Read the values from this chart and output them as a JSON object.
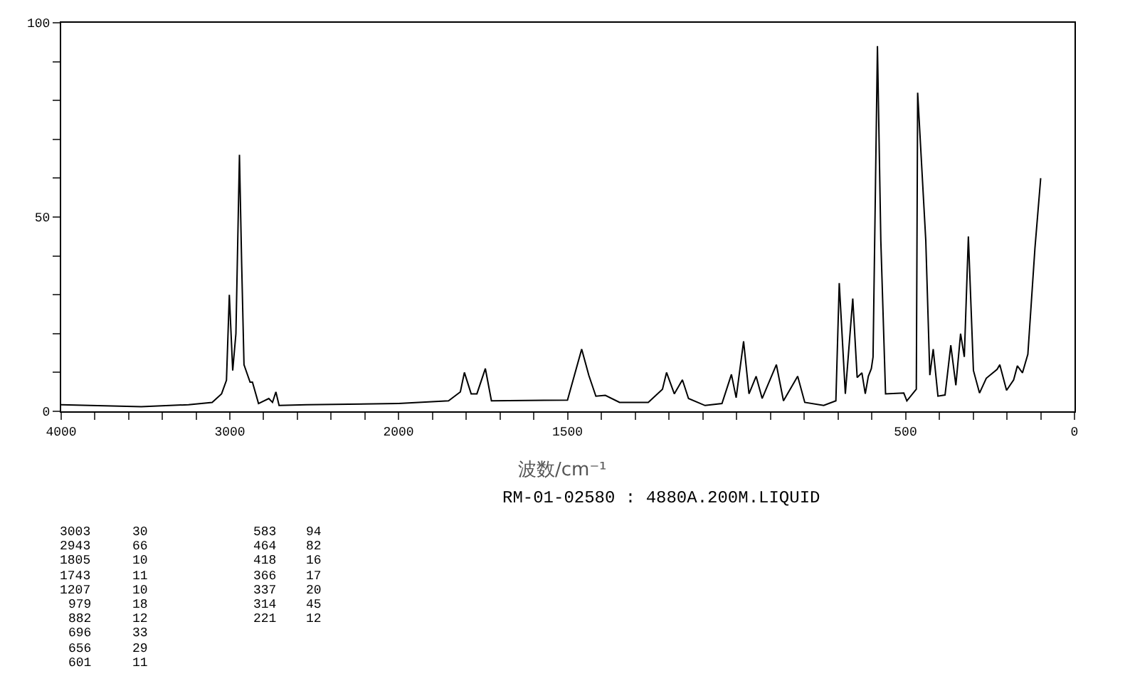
{
  "chart_data": [
    {
      "type": "line",
      "xlabel": "波数/cm⁻¹",
      "color": "#000000",
      "marker": "none",
      "line_style": "solid",
      "x": [
        4000,
        3525,
        3245,
        3105,
        3049,
        3020,
        3003,
        2983,
        2964,
        2943,
        2930,
        2916,
        2880,
        2866,
        2830,
        2769,
        2747,
        2727,
        2708,
        2544,
        2000
      ],
      "values": [
        1.7,
        1.2,
        1.7,
        2.3,
        4.5,
        8,
        30,
        10.5,
        20,
        66,
        38,
        12,
        7.5,
        7.5,
        2,
        3.3,
        2.3,
        5,
        1.5,
        1.7,
        2
      ],
      "xlim": [
        4000,
        2000
      ],
      "ylim": [
        0,
        100
      ],
      "xticks": [
        4000,
        {
          "value": 3800,
          "label": null
        },
        {
          "value": 3600,
          "label": null
        },
        {
          "value": 3400,
          "label": null
        },
        {
          "value": 3200,
          "label": null
        },
        3000,
        {
          "value": 2800,
          "label": null
        },
        {
          "value": 2600,
          "label": null
        },
        {
          "value": 2400,
          "label": null
        },
        {
          "value": 2200,
          "label": null
        },
        2000
      ],
      "yticks": [
        0,
        {
          "value": 10,
          "label": null
        },
        {
          "value": 20,
          "label": null
        },
        {
          "value": 30,
          "label": null
        },
        {
          "value": 40,
          "label": null
        },
        50,
        {
          "value": 60,
          "label": null
        },
        {
          "value": 70,
          "label": null
        },
        {
          "value": 80,
          "label": null
        },
        {
          "value": 90,
          "label": null
        },
        100
      ],
      "annotations": [
        "RM-01-02580 : 4880A.200M.LIQUID",
        "3003 30",
        "2943 66",
        "1805 10",
        "1743 11",
        "1207 10",
        "979 18",
        "882 12",
        "696 33",
        "656 29",
        "601 11",
        "583 94",
        "464 82",
        "418 16",
        "366 17",
        "337 20",
        "314 45",
        "221 12"
      ]
    },
    {
      "type": "line",
      "color": "#000000",
      "marker": "none",
      "line_style": "solid",
      "tick_labels": "x",
      "x": [
        2000,
        1852,
        1817,
        1805,
        1785,
        1768,
        1743,
        1725,
        1500,
        1458,
        1437,
        1416,
        1388,
        1346,
        1261,
        1219,
        1207,
        1184,
        1160,
        1142,
        1093,
        1043,
        1015,
        1001,
        979,
        963,
        942,
        924,
        882,
        861,
        819,
        798,
        742,
        706,
        696,
        678,
        656,
        643,
        629,
        619,
        610,
        601,
        596,
        583,
        573,
        559,
        505,
        496,
        468,
        464,
        440,
        428,
        418,
        404,
        383,
        366,
        351,
        337,
        326,
        314,
        299,
        281,
        261,
        229,
        221,
        201,
        180,
        169,
        154,
        138,
        117,
        100
      ],
      "values": [
        2,
        2.7,
        5,
        10,
        4.5,
        4.5,
        11,
        2.7,
        2.9,
        16,
        9.3,
        3.9,
        4.1,
        2.3,
        2.3,
        5.7,
        10,
        4.5,
        8.1,
        3.3,
        1.5,
        2,
        9.5,
        3.5,
        18,
        4.5,
        9,
        3.3,
        12,
        2.7,
        9,
        2.3,
        1.5,
        2.7,
        33,
        4.5,
        29,
        8.7,
        9.9,
        4.5,
        9,
        11,
        14,
        94,
        44,
        4.5,
        4.7,
        2.7,
        5.7,
        82,
        44,
        9.3,
        16,
        3.9,
        4.2,
        17,
        6.7,
        20,
        14,
        45,
        10.5,
        4.7,
        8.5,
        10.8,
        12,
        5.4,
        8.1,
        11.7,
        9.9,
        14.7,
        42,
        60
      ],
      "xlim": [
        2000,
        0
      ],
      "ylim": [
        0,
        100
      ],
      "xticks": [
        {
          "value": 1900,
          "label": null
        },
        {
          "value": 1800,
          "label": null
        },
        {
          "value": 1700,
          "label": null
        },
        {
          "value": 1600,
          "label": null
        },
        1500,
        {
          "value": 1400,
          "label": null
        },
        {
          "value": 1300,
          "label": null
        },
        {
          "value": 1200,
          "label": null
        },
        {
          "value": 1100,
          "label": null
        },
        {
          "value": 1000,
          "label": null
        },
        {
          "value": 900,
          "label": null
        },
        {
          "value": 800,
          "label": null
        },
        {
          "value": 700,
          "label": null
        },
        {
          "value": 600,
          "label": null
        },
        500,
        {
          "value": 400,
          "label": null
        },
        {
          "value": 300,
          "label": null
        },
        {
          "value": 200,
          "label": null
        },
        {
          "value": 100,
          "label": null
        },
        0
      ]
    }
  ]
}
